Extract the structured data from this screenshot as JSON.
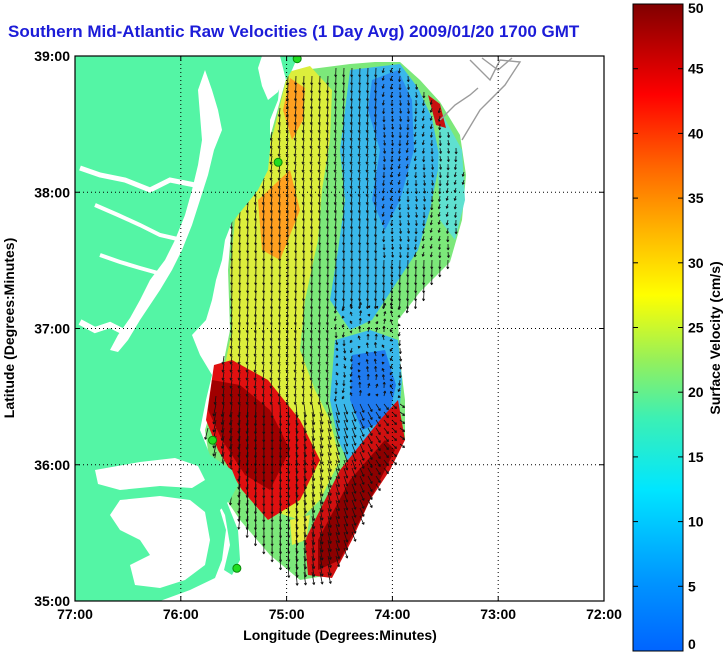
{
  "title": "Southern Mid-Atlantic Raw Velocities (1 Day Avg) 2009/01/20 1700 GMT",
  "colors": {
    "title": "#1c1cd8",
    "land": "#54f5a5",
    "water_base": "#ffffff",
    "frame": "#000000",
    "bathymetry": "#9b9b9b",
    "station": "#22dd22"
  },
  "map": {
    "lon_range": [
      -77,
      -72
    ],
    "lat_range": [
      35,
      39
    ],
    "x_ticks": [
      "77:00",
      "76:00",
      "75:00",
      "74:00",
      "73:00",
      "72:00"
    ],
    "y_ticks": [
      "35:00",
      "36:00",
      "37:00",
      "38:00",
      "39:00"
    ],
    "xlabel": "Longitude (Degrees:Minutes)",
    "ylabel": "Latitude (Degrees:Minutes)",
    "grid": true
  },
  "colorbar": {
    "label": "Surface Velocity (cm/s)",
    "ticks": [
      "0",
      "5",
      "10",
      "15",
      "20",
      "25",
      "30",
      "35",
      "40",
      "45",
      "50"
    ],
    "range": [
      0,
      50
    ],
    "colormap": "jet"
  },
  "stations": [
    {
      "lon": -74.9,
      "lat": 38.98
    },
    {
      "lon": -75.08,
      "lat": 38.22
    },
    {
      "lon": -75.7,
      "lat": 36.18
    },
    {
      "lon": -75.47,
      "lat": 35.24
    }
  ]
}
